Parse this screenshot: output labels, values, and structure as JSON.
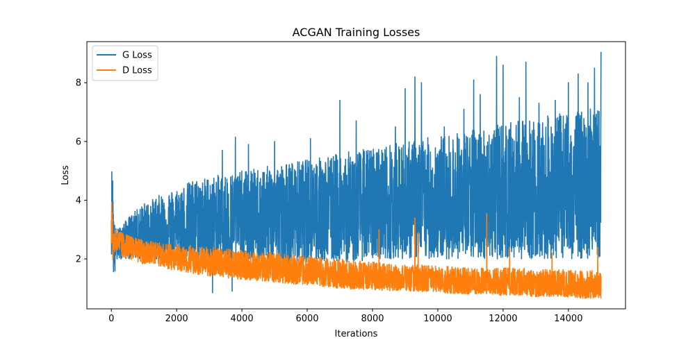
{
  "chart_data": {
    "type": "line",
    "title": "ACGAN Training Losses",
    "xlabel": "Iterations",
    "ylabel": "Loss",
    "xlim": [
      -750,
      15750
    ],
    "ylim": [
      0.3,
      9.4
    ],
    "xticks": [
      0,
      2000,
      4000,
      6000,
      8000,
      10000,
      12000,
      14000
    ],
    "yticks": [
      2,
      4,
      6,
      8
    ],
    "grid": false,
    "legend_position": "top-left",
    "series": [
      {
        "name": "G Loss",
        "color": "#1f77b4",
        "x": [
          0,
          40,
          80,
          150,
          300,
          500,
          800,
          1000,
          1200,
          1500,
          2000,
          2500,
          3000,
          3500,
          4000,
          4500,
          5000,
          5500,
          6000,
          6500,
          7000,
          7500,
          8000,
          8500,
          9000,
          9500,
          10000,
          10500,
          11000,
          11500,
          12000,
          12500,
          13000,
          13500,
          14000,
          14500,
          15000
        ],
        "low": [
          2.2,
          1.9,
          1.1,
          1.9,
          2.0,
          2.0,
          2.0,
          2.0,
          2.0,
          2.0,
          1.9,
          1.9,
          1.8,
          1.8,
          1.8,
          1.8,
          1.8,
          1.8,
          1.9,
          1.9,
          1.9,
          1.9,
          2.0,
          2.0,
          2.0,
          2.0,
          2.0,
          2.0,
          2.0,
          2.0,
          2.0,
          2.0,
          2.0,
          2.0,
          2.0,
          2.0,
          2.0
        ],
        "high": [
          5.2,
          4.9,
          3.3,
          3.0,
          3.1,
          3.4,
          3.7,
          3.9,
          4.0,
          4.2,
          4.4,
          4.7,
          4.8,
          4.9,
          5.0,
          5.1,
          5.2,
          5.3,
          5.4,
          5.5,
          5.6,
          5.7,
          5.8,
          5.9,
          6.0,
          6.1,
          6.2,
          6.3,
          6.4,
          6.5,
          6.6,
          6.7,
          6.8,
          6.9,
          7.0,
          7.1,
          7.2
        ],
        "mean": [
          4.0,
          3.5,
          2.6,
          2.6,
          2.7,
          2.8,
          2.9,
          3.0,
          3.0,
          3.1,
          3.1,
          3.2,
          3.2,
          3.2,
          3.3,
          3.3,
          3.3,
          3.3,
          3.4,
          3.4,
          3.4,
          3.5,
          3.5,
          3.5,
          3.6,
          3.6,
          3.6,
          3.6,
          3.7,
          3.7,
          3.7,
          3.8,
          3.8,
          3.8,
          3.9,
          3.9,
          4.0
        ],
        "spikes": [
          [
            3100,
            0.85
          ],
          [
            3700,
            0.9
          ],
          [
            3400,
            5.7
          ],
          [
            3800,
            6.15
          ],
          [
            4200,
            5.9
          ],
          [
            5000,
            6.0
          ],
          [
            6100,
            6.1
          ],
          [
            7000,
            7.4
          ],
          [
            7500,
            6.7
          ],
          [
            8700,
            6.5
          ],
          [
            9000,
            7.8
          ],
          [
            9300,
            8.2
          ],
          [
            9500,
            8.0
          ],
          [
            10200,
            6.5
          ],
          [
            10800,
            7.1
          ],
          [
            11100,
            8.1
          ],
          [
            11300,
            7.6
          ],
          [
            11800,
            8.9
          ],
          [
            12000,
            8.6
          ],
          [
            12500,
            7.5
          ],
          [
            12700,
            8.7
          ],
          [
            13100,
            7.3
          ],
          [
            13600,
            7.4
          ],
          [
            14000,
            8.0
          ],
          [
            14300,
            8.3
          ],
          [
            14600,
            8.0
          ],
          [
            14800,
            8.5
          ],
          [
            15000,
            9.05
          ]
        ]
      },
      {
        "name": "D Loss",
        "color": "#ff7f0e",
        "x": [
          0,
          40,
          80,
          150,
          300,
          500,
          800,
          1000,
          1200,
          1500,
          2000,
          2500,
          3000,
          3500,
          4000,
          4500,
          5000,
          5500,
          6000,
          6500,
          7000,
          7500,
          8000,
          8500,
          9000,
          9500,
          10000,
          10500,
          11000,
          11500,
          12000,
          12500,
          13000,
          13500,
          14000,
          14500,
          15000
        ],
        "low": [
          2.0,
          1.9,
          2.2,
          2.3,
          2.1,
          2.0,
          1.9,
          1.8,
          1.8,
          1.7,
          1.6,
          1.5,
          1.4,
          1.35,
          1.3,
          1.25,
          1.2,
          1.15,
          1.1,
          1.05,
          1.0,
          0.95,
          0.95,
          0.9,
          0.9,
          0.85,
          0.85,
          0.8,
          0.8,
          0.8,
          0.75,
          0.75,
          0.7,
          0.7,
          0.7,
          0.65,
          0.65
        ],
        "high": [
          4.3,
          3.2,
          3.1,
          3.0,
          2.9,
          2.8,
          2.7,
          2.65,
          2.6,
          2.55,
          2.5,
          2.45,
          2.4,
          2.35,
          2.3,
          2.25,
          2.2,
          2.15,
          2.1,
          2.05,
          2.0,
          1.95,
          1.9,
          1.85,
          1.8,
          1.8,
          1.75,
          1.75,
          1.7,
          1.7,
          1.7,
          1.7,
          1.65,
          1.65,
          1.65,
          1.6,
          1.6
        ],
        "mean": [
          3.2,
          2.7,
          2.6,
          2.6,
          2.5,
          2.4,
          2.3,
          2.25,
          2.2,
          2.1,
          2.0,
          1.9,
          1.85,
          1.8,
          1.75,
          1.65,
          1.6,
          1.55,
          1.5,
          1.45,
          1.4,
          1.35,
          1.3,
          1.3,
          1.25,
          1.2,
          1.2,
          1.15,
          1.15,
          1.1,
          1.1,
          1.1,
          1.05,
          1.05,
          1.0,
          1.0,
          1.0
        ],
        "spikes": [
          [
            8200,
            3.0
          ],
          [
            9300,
            3.4
          ],
          [
            9400,
            2.9
          ],
          [
            11500,
            3.55
          ],
          [
            12200,
            2.4
          ],
          [
            13500,
            2.2
          ],
          [
            14900,
            2.4
          ]
        ]
      }
    ]
  }
}
